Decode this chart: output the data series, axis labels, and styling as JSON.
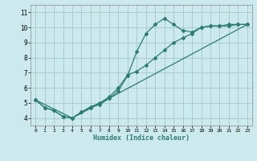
{
  "title": "",
  "xlabel": "Humidex (Indice chaleur)",
  "ylabel": "",
  "xlim": [
    -0.5,
    23.5
  ],
  "ylim": [
    3.5,
    11.5
  ],
  "xticks": [
    0,
    1,
    2,
    3,
    4,
    5,
    6,
    7,
    8,
    9,
    10,
    11,
    12,
    13,
    14,
    15,
    16,
    17,
    18,
    19,
    20,
    21,
    22,
    23
  ],
  "yticks": [
    4,
    5,
    6,
    7,
    8,
    9,
    10,
    11
  ],
  "bg_color": "#cce9ed",
  "grid_color": "#aacccc",
  "line_color": "#2e7d72",
  "line1_x": [
    0,
    1,
    2,
    3,
    4,
    5,
    6,
    7,
    8,
    9,
    10,
    11,
    12,
    13,
    14,
    15,
    16,
    17,
    18,
    19,
    20,
    21,
    22,
    23
  ],
  "line1_y": [
    5.2,
    4.7,
    4.5,
    4.1,
    4.0,
    4.4,
    4.7,
    4.9,
    5.3,
    5.8,
    6.8,
    8.4,
    9.6,
    10.2,
    10.6,
    10.2,
    9.8,
    9.7,
    10.0,
    10.1,
    10.1,
    10.1,
    10.2,
    10.2
  ],
  "line2_x": [
    0,
    1,
    2,
    3,
    4,
    5,
    6,
    7,
    8,
    9,
    10,
    11,
    12,
    13,
    14,
    15,
    16,
    17,
    18,
    19,
    20,
    21,
    22,
    23
  ],
  "line2_y": [
    5.2,
    4.7,
    4.5,
    4.1,
    4.0,
    4.4,
    4.75,
    5.0,
    5.4,
    6.0,
    6.85,
    7.1,
    7.5,
    8.0,
    8.5,
    9.0,
    9.3,
    9.6,
    10.0,
    10.1,
    10.1,
    10.2,
    10.2,
    10.2
  ],
  "line3_x": [
    0,
    4,
    23
  ],
  "line3_y": [
    5.2,
    4.0,
    10.2
  ]
}
